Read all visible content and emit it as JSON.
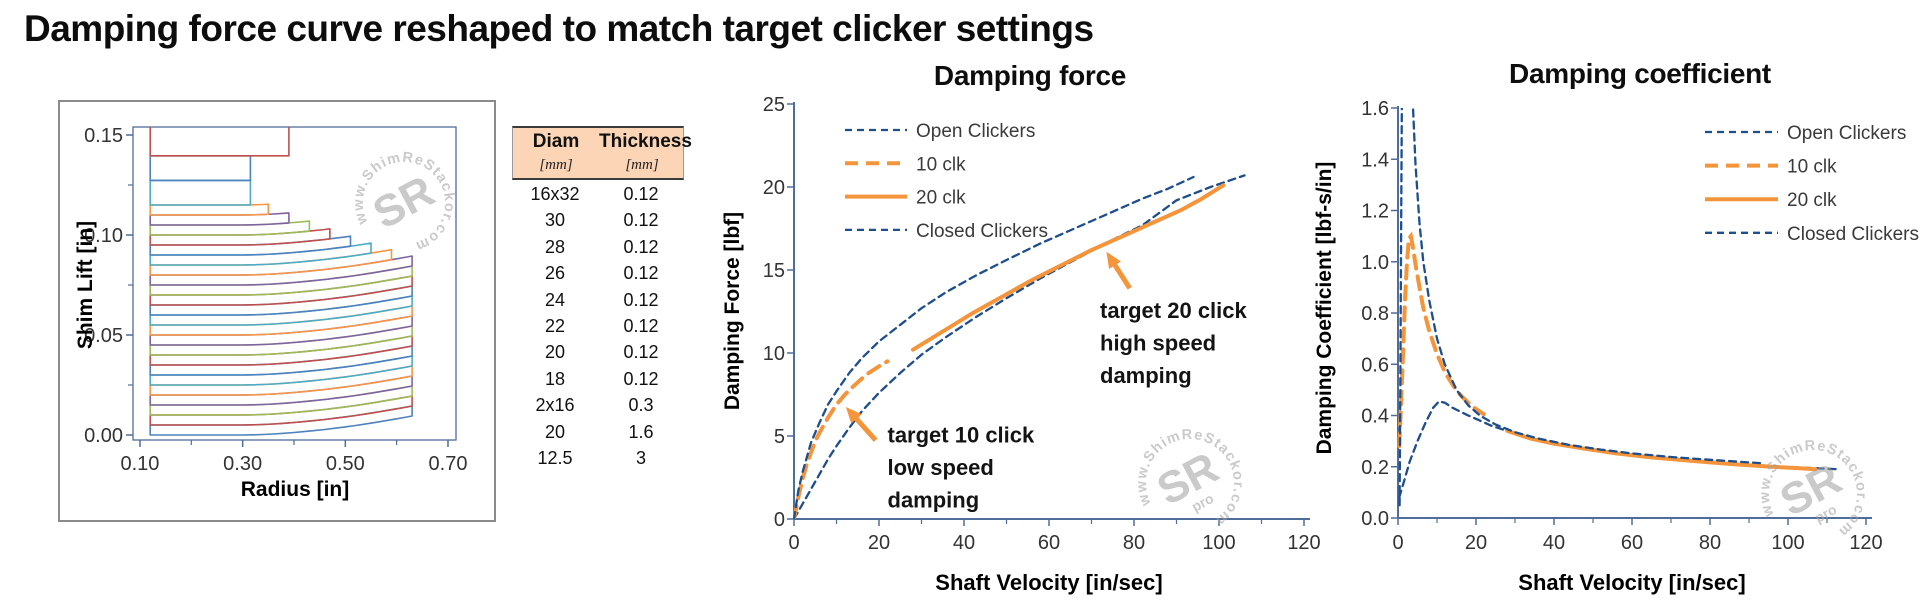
{
  "page_title": "Damping force curve reshaped to match target clicker settings",
  "watermark": {
    "ring_text": "www.ShimReStackor.com",
    "center_top": "SR",
    "center_bottom": "pro",
    "color": "#a0a0a0"
  },
  "shim_table": {
    "headers": [
      "Diam",
      "Thickness"
    ],
    "units": [
      "[mm]",
      "[mm]"
    ],
    "header_bg": "#FBD5B5",
    "rows": [
      [
        "16x32",
        "0.12"
      ],
      [
        "30",
        "0.12"
      ],
      [
        "28",
        "0.12"
      ],
      [
        "26",
        "0.12"
      ],
      [
        "24",
        "0.12"
      ],
      [
        "22",
        "0.12"
      ],
      [
        "20",
        "0.12"
      ],
      [
        "18",
        "0.12"
      ],
      [
        "2x16",
        "0.3"
      ],
      [
        "20",
        "1.6"
      ],
      [
        "12.5",
        "3"
      ]
    ]
  },
  "colors": {
    "navy": "#1F4E8C",
    "orange": "#F4943B",
    "axis": "#4f6d99",
    "tick_text": "#333333",
    "panel_border": "#8a8a8a"
  },
  "chart_data": [
    {
      "id": "shim-stack",
      "type": "line",
      "title": "",
      "xlabel": "Radius [in]",
      "ylabel": "Shim Lift [in]",
      "xlim": [
        0.0864,
        0.7156
      ],
      "ylim": [
        -0.0025,
        0.154
      ],
      "xticks": [
        {
          "v": 0.1,
          "label": "0.10"
        },
        {
          "v": 0.3,
          "label": "0.30"
        },
        {
          "v": 0.5,
          "label": "0.50"
        },
        {
          "v": 0.7,
          "label": "0.70"
        }
      ],
      "yticks": [
        {
          "v": 0.0,
          "label": "0.00"
        },
        {
          "v": 0.05,
          "label": "0.05"
        },
        {
          "v": 0.1,
          "label": "0.10"
        },
        {
          "v": 0.15,
          "label": "0.15"
        }
      ],
      "xminor": [
        0.2,
        0.4,
        0.6
      ],
      "yminor": [
        0.025,
        0.075,
        0.125
      ],
      "box": true,
      "clamp_radius": 0.12,
      "bend": {
        "amp": 0.0095,
        "flex_start": 0.3,
        "span": 0.33,
        "pow": 1.7
      },
      "palette_top_down": [
        "#C0504D",
        "#4F81BD",
        "#4BACC6",
        "#F79646",
        "#8064A2",
        "#9BBB59"
      ],
      "shims_bottom_up": [
        {
          "r": 0.63,
          "t": 0.005,
          "flex": true
        },
        {
          "r": 0.63,
          "t": 0.005,
          "flex": true
        },
        {
          "r": 0.63,
          "t": 0.005,
          "flex": true
        },
        {
          "r": 0.63,
          "t": 0.005,
          "flex": true
        },
        {
          "r": 0.63,
          "t": 0.005,
          "flex": true
        },
        {
          "r": 0.63,
          "t": 0.005,
          "flex": true
        },
        {
          "r": 0.63,
          "t": 0.005,
          "flex": true
        },
        {
          "r": 0.63,
          "t": 0.005,
          "flex": true
        },
        {
          "r": 0.63,
          "t": 0.005,
          "flex": true
        },
        {
          "r": 0.63,
          "t": 0.005,
          "flex": true
        },
        {
          "r": 0.63,
          "t": 0.005,
          "flex": true
        },
        {
          "r": 0.63,
          "t": 0.005,
          "flex": true
        },
        {
          "r": 0.63,
          "t": 0.005,
          "flex": true
        },
        {
          "r": 0.63,
          "t": 0.005,
          "flex": true
        },
        {
          "r": 0.63,
          "t": 0.005,
          "flex": true
        },
        {
          "r": 0.63,
          "t": 0.005,
          "flex": true
        },
        {
          "r": 0.59,
          "t": 0.005,
          "flex": true
        },
        {
          "r": 0.55,
          "t": 0.005,
          "flex": true
        },
        {
          "r": 0.51,
          "t": 0.005,
          "flex": true
        },
        {
          "r": 0.47,
          "t": 0.005,
          "flex": true
        },
        {
          "r": 0.43,
          "t": 0.005,
          "flex": true
        },
        {
          "r": 0.39,
          "t": 0.005,
          "flex": true
        },
        {
          "r": 0.35,
          "t": 0.005,
          "flex": true
        },
        {
          "r": 0.315,
          "t": 0.0123,
          "flex": false
        },
        {
          "r": 0.315,
          "t": 0.0123,
          "flex": false
        },
        {
          "r": 0.39,
          "t": 0.063,
          "flex": false
        }
      ]
    },
    {
      "id": "damping-force",
      "type": "line",
      "title": "Damping force",
      "xlabel": "Shaft Velocity [in/sec]",
      "ylabel": "Damping Force [lbf]",
      "xlim": [
        0,
        120
      ],
      "ylim": [
        0,
        25
      ],
      "xticks": [
        {
          "v": 0,
          "label": "0"
        },
        {
          "v": 20,
          "label": "20"
        },
        {
          "v": 40,
          "label": "40"
        },
        {
          "v": 60,
          "label": "60"
        },
        {
          "v": 80,
          "label": "80"
        },
        {
          "v": 100,
          "label": "100"
        },
        {
          "v": 120,
          "label": "120"
        }
      ],
      "yticks": [
        {
          "v": 0,
          "label": "0"
        },
        {
          "v": 5,
          "label": "5"
        },
        {
          "v": 10,
          "label": "10"
        },
        {
          "v": 15,
          "label": "15"
        },
        {
          "v": 20,
          "label": "20"
        },
        {
          "v": 25,
          "label": "25"
        }
      ],
      "xminor": [
        10,
        30,
        50,
        70,
        90,
        110
      ],
      "yminor": [],
      "box": false,
      "legend_position": "top-left-inside",
      "series": [
        {
          "id": "open-clickers",
          "name": "Open Clickers",
          "color": "#1F4E8C",
          "dash": "7 5",
          "width": 2.3,
          "points": [
            [
              0,
              0
            ],
            [
              2,
              0.9
            ],
            [
              4,
              1.8
            ],
            [
              6,
              2.7
            ],
            [
              8,
              3.6
            ],
            [
              10,
              4.4
            ],
            [
              13,
              5.5
            ],
            [
              16,
              6.5
            ],
            [
              20,
              7.6
            ],
            [
              25,
              8.8
            ],
            [
              30,
              9.9
            ],
            [
              36,
              11.0
            ],
            [
              43,
              12.2
            ],
            [
              50,
              13.3
            ],
            [
              58,
              14.5
            ],
            [
              66,
              15.6
            ],
            [
              74,
              16.7
            ],
            [
              82,
              17.7
            ],
            [
              90,
              19.2
            ],
            [
              98,
              20.0
            ],
            [
              106,
              20.7
            ]
          ]
        },
        {
          "id": "10-clk",
          "name": "10 clk",
          "color": "#F4943B",
          "dash": "13 8",
          "width": 4,
          "points": [
            [
              0,
              0
            ],
            [
              1,
              1.3
            ],
            [
              2,
              2.4
            ],
            [
              3,
              3.3
            ],
            [
              4,
              4.0
            ],
            [
              5,
              4.7
            ],
            [
              6,
              5.2
            ],
            [
              8,
              6.1
            ],
            [
              10,
              6.9
            ],
            [
              12,
              7.5
            ],
            [
              14,
              8.0
            ],
            [
              17,
              8.7
            ],
            [
              20,
              9.2
            ],
            [
              22,
              9.5
            ]
          ]
        },
        {
          "id": "20-clk",
          "name": "20 clk",
          "color": "#F4943B",
          "dash": "",
          "width": 4,
          "points": [
            [
              28,
              10.2
            ],
            [
              35,
              11.3
            ],
            [
              42,
              12.4
            ],
            [
              49,
              13.4
            ],
            [
              56,
              14.4
            ],
            [
              63,
              15.3
            ],
            [
              70,
              16.2
            ],
            [
              77,
              17.0
            ],
            [
              84,
              17.8
            ],
            [
              91,
              18.6
            ],
            [
              96,
              19.3
            ],
            [
              101,
              20.1
            ]
          ]
        },
        {
          "id": "closed-clickers",
          "name": "Closed Clickers",
          "color": "#1F4E8C",
          "dash": "7 5",
          "width": 2.3,
          "points": [
            [
              0,
              0
            ],
            [
              1,
              1.7
            ],
            [
              2,
              2.8
            ],
            [
              4,
              4.6
            ],
            [
              6,
              5.8
            ],
            [
              8,
              6.9
            ],
            [
              10,
              7.7
            ],
            [
              13,
              8.8
            ],
            [
              16,
              9.7
            ],
            [
              20,
              10.7
            ],
            [
              25,
              11.7
            ],
            [
              30,
              12.7
            ],
            [
              36,
              13.7
            ],
            [
              43,
              14.7
            ],
            [
              50,
              15.6
            ],
            [
              58,
              16.6
            ],
            [
              66,
              17.5
            ],
            [
              74,
              18.4
            ],
            [
              82,
              19.3
            ],
            [
              88,
              19.9
            ],
            [
              94,
              20.6
            ]
          ]
        }
      ],
      "annotations": [
        {
          "lines": [
            "target 10 click",
            "low speed",
            "damping"
          ],
          "x": 22,
          "y": 4.6,
          "line_step": 1.95,
          "arrow": {
            "from": [
              19.2,
              4.75
            ],
            "to": [
              12.2,
              6.75
            ]
          }
        },
        {
          "lines": [
            "target 20 click",
            "high speed",
            "damping"
          ],
          "x": 72,
          "y": 12.1,
          "line_step": 1.95,
          "arrow": {
            "from": [
              79,
              13.9
            ],
            "to": [
              73.5,
              16.1
            ]
          }
        }
      ]
    },
    {
      "id": "damping-coefficient",
      "type": "line",
      "title": "Damping coefficient",
      "xlabel": "Shaft Velocity [in/sec]",
      "ylabel": "Damping Coefficient  [lbf-s/in]",
      "xlim": [
        0,
        120
      ],
      "ylim": [
        0,
        1.6
      ],
      "xticks": [
        {
          "v": 0,
          "label": "0"
        },
        {
          "v": 20,
          "label": "20"
        },
        {
          "v": 40,
          "label": "40"
        },
        {
          "v": 60,
          "label": "60"
        },
        {
          "v": 80,
          "label": "80"
        },
        {
          "v": 100,
          "label": "100"
        },
        {
          "v": 120,
          "label": "120"
        }
      ],
      "yticks": [
        {
          "v": 0.0,
          "label": "0.0"
        },
        {
          "v": 0.2,
          "label": "0.2"
        },
        {
          "v": 0.4,
          "label": "0.4"
        },
        {
          "v": 0.6,
          "label": "0.6"
        },
        {
          "v": 0.8,
          "label": "0.8"
        },
        {
          "v": 1.0,
          "label": "1.0"
        },
        {
          "v": 1.2,
          "label": "1.2"
        },
        {
          "v": 1.4,
          "label": "1.4"
        },
        {
          "v": 1.6,
          "label": "1.6"
        }
      ],
      "xminor": [
        10,
        30,
        50,
        70,
        90,
        110
      ],
      "yminor": [],
      "box": false,
      "legend_position": "top-right-inside",
      "series": [
        {
          "id": "open-clickers",
          "name": "Open Clickers",
          "color": "#1F4E8C",
          "dash": "7 5",
          "width": 2.3,
          "points": [
            [
              0.3,
              0.08
            ],
            [
              1.5,
              0.14
            ],
            [
              3,
              0.22
            ],
            [
              5,
              0.3
            ],
            [
              7,
              0.37
            ],
            [
              9,
              0.43
            ],
            [
              10.5,
              0.455
            ],
            [
              12,
              0.45
            ],
            [
              14,
              0.43
            ],
            [
              16,
              0.415
            ],
            [
              18,
              0.4
            ],
            [
              21,
              0.38
            ],
            [
              24,
              0.36
            ],
            [
              28,
              0.34
            ],
            [
              33,
              0.315
            ],
            [
              40,
              0.29
            ],
            [
              48,
              0.27
            ],
            [
              56,
              0.25
            ],
            [
              64,
              0.24
            ],
            [
              72,
              0.23
            ],
            [
              80,
              0.22
            ],
            [
              88,
              0.21
            ],
            [
              96,
              0.2
            ],
            [
              106,
              0.195
            ],
            [
              113,
              0.19
            ]
          ]
        },
        {
          "id": "10-clk",
          "name": "10 clk",
          "color": "#F4943B",
          "dash": "13 8",
          "width": 4,
          "points": [
            [
              0.3,
              0.28
            ],
            [
              0.8,
              0.45
            ],
            [
              1.3,
              0.65
            ],
            [
              1.8,
              0.85
            ],
            [
              2.3,
              1.0
            ],
            [
              2.8,
              1.09
            ],
            [
              3.3,
              1.1
            ],
            [
              3.8,
              1.06
            ],
            [
              4.5,
              0.99
            ],
            [
              5.5,
              0.9
            ],
            [
              6.5,
              0.82
            ],
            [
              8,
              0.73
            ],
            [
              10,
              0.64
            ],
            [
              12,
              0.57
            ],
            [
              14,
              0.52
            ],
            [
              16,
              0.48
            ],
            [
              18,
              0.45
            ],
            [
              20,
              0.425
            ],
            [
              22,
              0.405
            ]
          ]
        },
        {
          "id": "20-clk",
          "name": "20 clk",
          "color": "#F4943B",
          "dash": "",
          "width": 4,
          "points": [
            [
              28,
              0.34
            ],
            [
              34,
              0.31
            ],
            [
              40,
              0.29
            ],
            [
              48,
              0.27
            ],
            [
              56,
              0.252
            ],
            [
              64,
              0.238
            ],
            [
              72,
              0.227
            ],
            [
              80,
              0.217
            ],
            [
              88,
              0.208
            ],
            [
              96,
              0.2
            ],
            [
              102,
              0.195
            ],
            [
              107,
              0.19
            ]
          ]
        },
        {
          "id": "closed-clickers",
          "name": "Closed Clickers",
          "color": "#1F4E8C",
          "dash": "7 5",
          "width": 2.3,
          "points": [
            [
              0.4,
              0.05
            ],
            [
              0.6,
              0.5
            ],
            [
              0.8,
              1.1
            ],
            [
              1.0,
              1.65
            ],
            [
              1.3,
              2.0
            ],
            [
              3.4,
              2.0
            ],
            [
              3.8,
              1.62
            ],
            [
              4.5,
              1.38
            ],
            [
              5.5,
              1.15
            ],
            [
              6.5,
              1.0
            ],
            [
              8,
              0.85
            ],
            [
              10,
              0.7
            ],
            [
              12,
              0.6
            ],
            [
              15,
              0.5
            ],
            [
              18,
              0.44
            ],
            [
              21,
              0.4
            ],
            [
              25,
              0.365
            ],
            [
              30,
              0.335
            ],
            [
              36,
              0.31
            ],
            [
              44,
              0.285
            ],
            [
              52,
              0.267
            ],
            [
              60,
              0.252
            ],
            [
              70,
              0.238
            ],
            [
              80,
              0.227
            ],
            [
              90,
              0.217
            ],
            [
              94,
              0.213
            ]
          ]
        }
      ],
      "annotations": []
    }
  ]
}
